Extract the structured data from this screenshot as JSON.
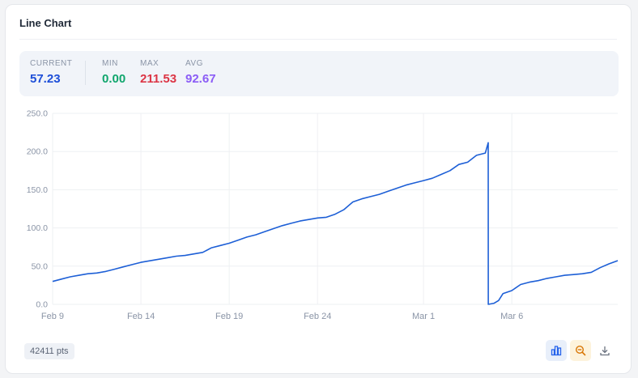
{
  "card": {
    "title": "Line Chart"
  },
  "stats": {
    "current": {
      "label": "CURRENT",
      "value": "57.23",
      "color": "#1d4ed8"
    },
    "min": {
      "label": "MIN",
      "value": "0.00",
      "color": "#10a66d"
    },
    "max": {
      "label": "MAX",
      "value": "211.53",
      "color": "#dc3545"
    },
    "avg": {
      "label": "AVG",
      "value": "92.67",
      "color": "#8b5cf6"
    }
  },
  "footer": {
    "points_badge": "42411 pts",
    "tools": [
      {
        "icon": "bar-chart-icon",
        "bg": "#e8effa",
        "color": "#2563eb"
      },
      {
        "icon": "zoom-out-icon",
        "bg": "#fdf3dc",
        "color": "#d97706"
      },
      {
        "icon": "download-icon",
        "bg": "#ffffff",
        "color": "#6b7280"
      }
    ]
  },
  "chart_data": {
    "type": "line",
    "title": "",
    "xlabel": "",
    "ylabel": "",
    "ylim": [
      0,
      250
    ],
    "yticks": [
      "0.0",
      "50.0",
      "100.0",
      "150.0",
      "200.0",
      "250.0"
    ],
    "x_range": [
      "2024-02-09",
      "2024-03-12"
    ],
    "xticks": [
      {
        "label": "Feb 9",
        "date": "2024-02-09"
      },
      {
        "label": "Feb 14",
        "date": "2024-02-14"
      },
      {
        "label": "Feb 19",
        "date": "2024-02-19"
      },
      {
        "label": "Feb 24",
        "date": "2024-02-24"
      },
      {
        "label": "Mar 1",
        "date": "2024-03-01"
      },
      {
        "label": "Mar 6",
        "date": "2024-03-06"
      }
    ],
    "grid": true,
    "line_color": "#1d5fd6",
    "series": [
      {
        "x": [
          "2024-02-09 00:00",
          "2024-02-09 12:00",
          "2024-02-10 00:00",
          "2024-02-10 12:00",
          "2024-02-11 00:00",
          "2024-02-11 12:00",
          "2024-02-12 00:00",
          "2024-02-12 12:00",
          "2024-02-13 00:00",
          "2024-02-13 12:00",
          "2024-02-14 00:00",
          "2024-02-14 12:00",
          "2024-02-15 00:00",
          "2024-02-15 12:00",
          "2024-02-16 00:00",
          "2024-02-16 12:00",
          "2024-02-17 00:00",
          "2024-02-17 12:00",
          "2024-02-18 00:00",
          "2024-02-18 12:00",
          "2024-02-19 00:00",
          "2024-02-19 12:00",
          "2024-02-20 00:00",
          "2024-02-20 12:00",
          "2024-02-21 00:00",
          "2024-02-21 12:00",
          "2024-02-22 00:00",
          "2024-02-22 12:00",
          "2024-02-23 00:00",
          "2024-02-23 12:00",
          "2024-02-24 00:00",
          "2024-02-24 12:00",
          "2024-02-25 00:00",
          "2024-02-25 12:00",
          "2024-02-26 00:00",
          "2024-02-26 12:00",
          "2024-02-27 00:00",
          "2024-02-27 12:00",
          "2024-02-28 00:00",
          "2024-02-28 12:00",
          "2024-02-29 00:00",
          "2024-02-29 12:00",
          "2024-03-01 00:00",
          "2024-03-01 12:00",
          "2024-03-02 00:00",
          "2024-03-02 12:00",
          "2024-03-03 00:00",
          "2024-03-03 12:00",
          "2024-03-04 00:00",
          "2024-03-04 12:00",
          "2024-03-04 16:00",
          "2024-03-04 16:01",
          "2024-03-05 00:00",
          "2024-03-05 06:00",
          "2024-03-05 12:00",
          "2024-03-06 00:00",
          "2024-03-06 12:00",
          "2024-03-07 00:00",
          "2024-03-07 12:00",
          "2024-03-08 00:00",
          "2024-03-08 12:00",
          "2024-03-09 00:00",
          "2024-03-09 12:00",
          "2024-03-10 00:00",
          "2024-03-10 12:00",
          "2024-03-11 00:00",
          "2024-03-11 12:00",
          "2024-03-12 00:00"
        ],
        "y": [
          30,
          33,
          36,
          38,
          40,
          41,
          43,
          46,
          49,
          52,
          55,
          57,
          59,
          61,
          63,
          64,
          66,
          68,
          74,
          77,
          80,
          84,
          88,
          91,
          95,
          99,
          103,
          106,
          109,
          111,
          113,
          114,
          118,
          124,
          134,
          138,
          141,
          144,
          148,
          152,
          156,
          159,
          162,
          165,
          170,
          175,
          183,
          186,
          195,
          198,
          211.53,
          0,
          1.5,
          5,
          14,
          18,
          26,
          29,
          31,
          34,
          36,
          38,
          39,
          40,
          42,
          48,
          53,
          57.23
        ]
      }
    ]
  }
}
